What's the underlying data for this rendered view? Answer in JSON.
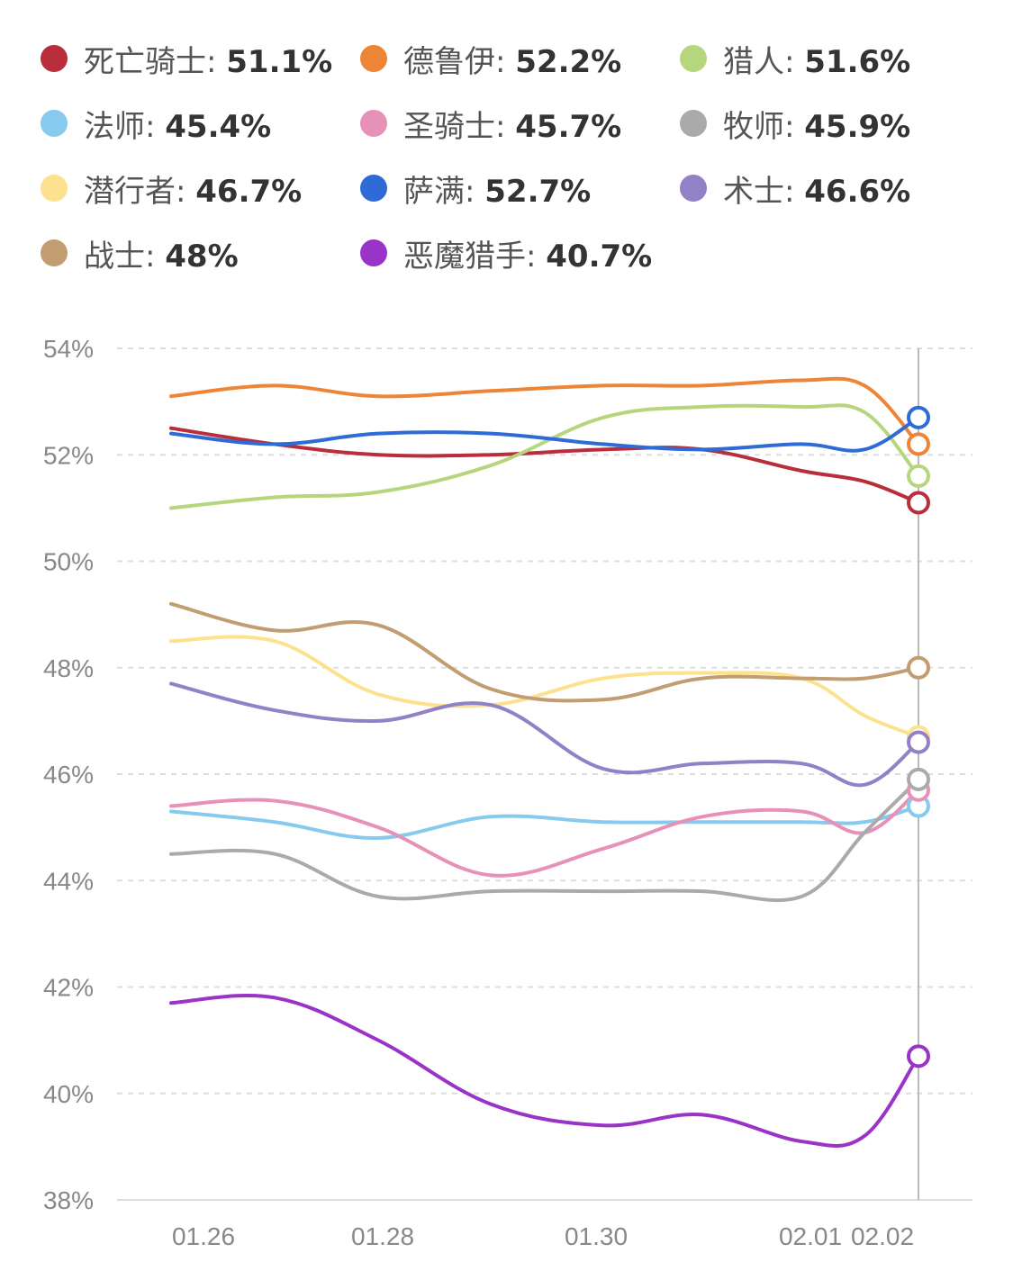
{
  "chart_data": {
    "type": "line",
    "title": "",
    "xlabel": "",
    "ylabel": "",
    "ylim": [
      38,
      54
    ],
    "y_ticks": [
      "54%",
      "52%",
      "50%",
      "48%",
      "46%",
      "44%",
      "42%",
      "40%",
      "38%"
    ],
    "y_tick_values": [
      54,
      52,
      50,
      48,
      46,
      44,
      42,
      40,
      38
    ],
    "x": [
      "01.25",
      "01.26",
      "01.27",
      "01.28",
      "01.29",
      "01.30",
      "01.31",
      "02.01",
      "02.02"
    ],
    "x_tick_labels": [
      "01.26",
      "01.28",
      "01.30",
      "02.01",
      "02.02"
    ],
    "grid": "horizontal dashed",
    "legend_position": "top",
    "series": [
      {
        "name": "死亡骑士",
        "display": "51.1%",
        "color": "#B82E3A",
        "values": [
          52.5,
          52.2,
          52.0,
          52.0,
          52.1,
          52.1,
          51.7,
          51.5,
          51.1
        ]
      },
      {
        "name": "德鲁伊",
        "display": "52.2%",
        "color": "#EE8435",
        "values": [
          53.1,
          53.3,
          53.1,
          53.2,
          53.3,
          53.3,
          53.4,
          53.3,
          52.2
        ]
      },
      {
        "name": "猎人",
        "display": "51.6%",
        "color": "#B6D67E",
        "values": [
          51.0,
          51.2,
          51.3,
          51.8,
          52.7,
          52.9,
          52.9,
          52.8,
          51.6
        ]
      },
      {
        "name": "法师",
        "display": "45.4%",
        "color": "#86CBEE",
        "values": [
          45.3,
          45.1,
          44.8,
          45.2,
          45.1,
          45.1,
          45.1,
          45.1,
          45.4
        ]
      },
      {
        "name": "圣骑士",
        "display": "45.7%",
        "color": "#E891B8",
        "values": [
          45.4,
          45.5,
          45.0,
          44.1,
          44.6,
          45.2,
          45.3,
          44.9,
          45.7
        ]
      },
      {
        "name": "牧师",
        "display": "45.9%",
        "color": "#AAAAAA",
        "values": [
          44.5,
          44.5,
          43.7,
          43.8,
          43.8,
          43.8,
          43.7,
          44.9,
          45.9
        ]
      },
      {
        "name": "潜行者",
        "display": "46.7%",
        "color": "#FCE28F",
        "values": [
          48.5,
          48.5,
          47.5,
          47.3,
          47.8,
          47.9,
          47.8,
          47.1,
          46.7
        ]
      },
      {
        "name": "萨满",
        "display": "52.7%",
        "color": "#2E6BD6",
        "values": [
          52.4,
          52.2,
          52.4,
          52.4,
          52.2,
          52.1,
          52.2,
          52.1,
          52.7
        ]
      },
      {
        "name": "术士",
        "display": "46.6%",
        "color": "#9181C6",
        "values": [
          47.7,
          47.2,
          47.0,
          47.3,
          46.1,
          46.2,
          46.2,
          45.8,
          46.6
        ]
      },
      {
        "name": "战士",
        "display": "48%",
        "color": "#C19D71",
        "values": [
          49.2,
          48.7,
          48.8,
          47.6,
          47.4,
          47.8,
          47.8,
          47.8,
          48.0
        ]
      },
      {
        "name": "恶魔猎手",
        "display": "40.7%",
        "color": "#9A33C8",
        "values": [
          41.7,
          41.8,
          41.0,
          39.8,
          39.4,
          39.6,
          39.1,
          39.2,
          40.7
        ]
      }
    ]
  }
}
